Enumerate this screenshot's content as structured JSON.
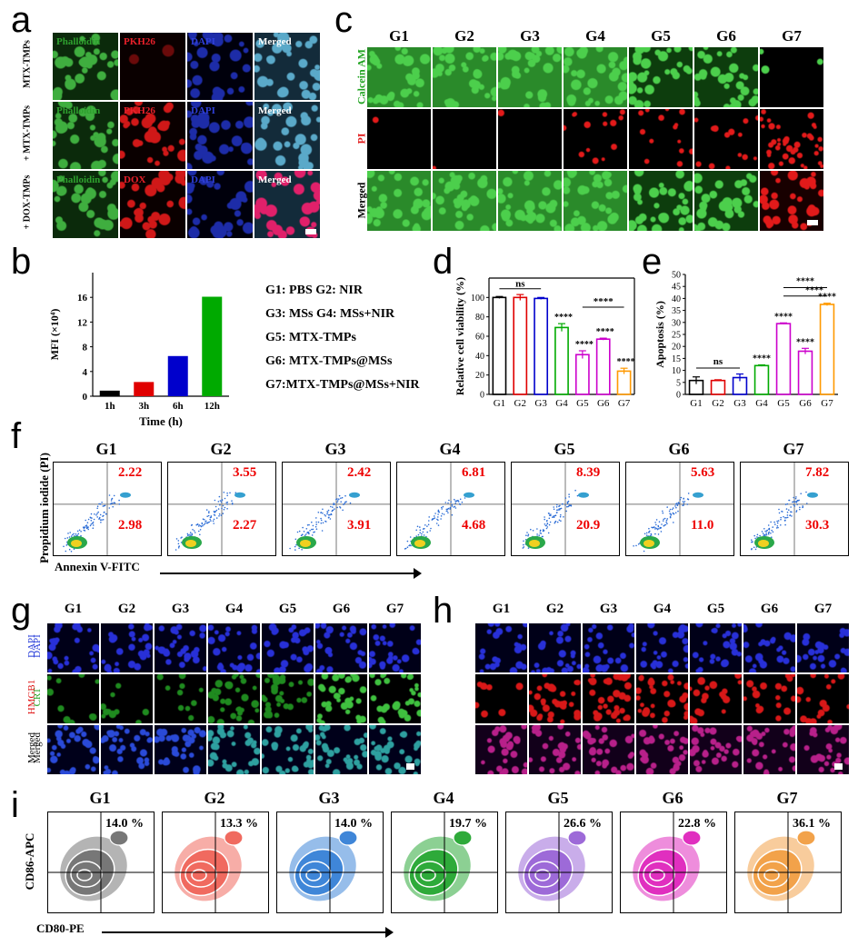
{
  "panel_labels": {
    "a": "a",
    "b": "b",
    "c": "c",
    "d": "d",
    "e": "e",
    "f": "f",
    "g": "g",
    "h": "h",
    "i": "i"
  },
  "panel_a": {
    "row_labels": [
      "MTX-TMPs",
      "+ MTX-TMPs",
      "+ DOX-TMPs"
    ],
    "tiles": [
      [
        "Phalloidin",
        "PKH26",
        "DAPI",
        "Merged"
      ],
      [
        "Phalloidin",
        "PKH26",
        "DAPI",
        "Merged"
      ],
      [
        "Phalloidin",
        "DOX",
        "DAPI",
        "Merged"
      ]
    ],
    "colors": {
      "green": "#2ea02e",
      "red": "#e8202a",
      "blue": "#2f3fd8",
      "white": "#ffffff"
    }
  },
  "groups": [
    "G1",
    "G2",
    "G3",
    "G4",
    "G5",
    "G6",
    "G7"
  ],
  "panel_c": {
    "row_labels": [
      "Calcein AM",
      "PI",
      "Merged"
    ]
  },
  "panel_b": {
    "chart_data": {
      "type": "bar",
      "categories": [
        "1h",
        "3h",
        "6h",
        "12h"
      ],
      "values": [
        0.9,
        2.3,
        6.5,
        16.1
      ],
      "colors": [
        "#000000",
        "#e00000",
        "#0000cc",
        "#00aa00"
      ],
      "ylabel": "MFI (×10⁴)",
      "xlabel": "Time (h)",
      "yticks": [
        "0",
        "4",
        "8",
        "12",
        "16"
      ],
      "ylim": [
        0,
        20
      ]
    }
  },
  "legend": [
    "G1: PBS   G2: NIR",
    "G3: MSs   G4: MSs+NIR",
    "G5: MTX-TMPs",
    "G6: MTX-TMPs@MSs",
    "G7:MTX-TMPs@MSs+NIR"
  ],
  "panel_d": {
    "chart_data": {
      "type": "bar",
      "categories": [
        "G1",
        "G2",
        "G3",
        "G4",
        "G5",
        "G6",
        "G7"
      ],
      "values": [
        100,
        100,
        99,
        69,
        41,
        57,
        24
      ],
      "errors": [
        1,
        3,
        1,
        4,
        4,
        1,
        3
      ],
      "colors": [
        "#000000",
        "#e00000",
        "#0000cc",
        "#00aa00",
        "#cc00cc",
        "#cc00cc",
        "#ff9900"
      ],
      "ylabel": "Relative cell viability (%)",
      "yticks": [
        "0",
        "20",
        "40",
        "60",
        "80",
        "100"
      ],
      "ylim": [
        0,
        120
      ],
      "annotations": {
        "ns": "ns",
        "sig": "****"
      }
    }
  },
  "panel_e": {
    "chart_data": {
      "type": "bar",
      "categories": [
        "G1",
        "G2",
        "G3",
        "G4",
        "G5",
        "G6",
        "G7"
      ],
      "values": [
        5.8,
        5.8,
        7.0,
        12,
        29.5,
        18,
        37.5
      ],
      "errors": [
        1.5,
        0.3,
        1.5,
        0.3,
        0.3,
        1.2,
        0.5
      ],
      "colors": [
        "#000000",
        "#e00000",
        "#0000cc",
        "#00aa00",
        "#cc00cc",
        "#cc00cc",
        "#ff9900"
      ],
      "ylabel": "Apoptosis (%)",
      "yticks": [
        "0",
        "5",
        "10",
        "15",
        "20",
        "25",
        "30",
        "35",
        "40",
        "45",
        "50"
      ],
      "ylim": [
        0,
        50
      ],
      "annotations": {
        "ns": "ns",
        "sig": "****"
      }
    }
  },
  "panel_f": {
    "ylabel": "Propidium iodide (PI)",
    "xlabel": "Annexin V-FITC",
    "upper": [
      "2.22",
      "3.55",
      "2.42",
      "6.81",
      "8.39",
      "5.63",
      "7.82"
    ],
    "lower": [
      "2.98",
      "2.27",
      "3.91",
      "4.68",
      "20.9",
      "11.0",
      "30.3"
    ]
  },
  "panel_g": {
    "row_labels": [
      "DAPI",
      "CRT",
      "Merged"
    ]
  },
  "panel_h": {
    "row_labels": [
      "DAPI",
      "HMGB1",
      "Merged"
    ]
  },
  "panel_i": {
    "ylabel": "CD86-APC",
    "xlabel": "CD80-PE",
    "percents": [
      "14.0 %",
      "13.3 %",
      "14.0 %",
      "19.7 %",
      "26.6 %",
      "22.8 %",
      "36.1 %"
    ],
    "colors": [
      "#777777",
      "#f06a5f",
      "#3f86d8",
      "#2eaa3a",
      "#9d6ad8",
      "#e02fbf",
      "#f2a24a"
    ]
  }
}
